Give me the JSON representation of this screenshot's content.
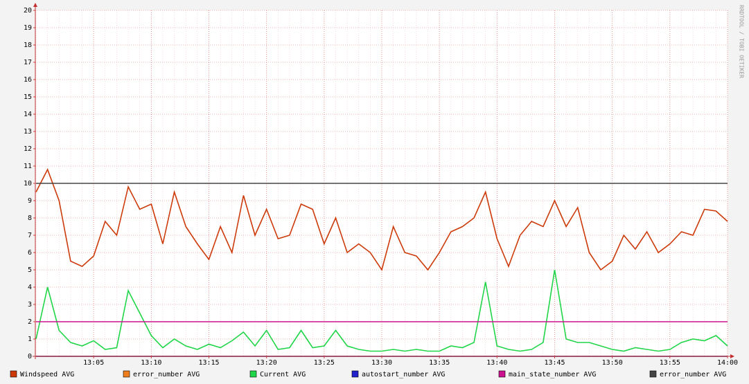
{
  "chart_data": {
    "type": "line",
    "watermark": "RRDTOOL / TOBI OETIKER",
    "x": [
      "13:00",
      "13:01",
      "13:02",
      "13:03",
      "13:04",
      "13:05",
      "13:06",
      "13:07",
      "13:08",
      "13:09",
      "13:10",
      "13:11",
      "13:12",
      "13:13",
      "13:14",
      "13:15",
      "13:16",
      "13:17",
      "13:18",
      "13:19",
      "13:20",
      "13:21",
      "13:22",
      "13:23",
      "13:24",
      "13:25",
      "13:26",
      "13:27",
      "13:28",
      "13:29",
      "13:30",
      "13:31",
      "13:32",
      "13:33",
      "13:34",
      "13:35",
      "13:36",
      "13:37",
      "13:38",
      "13:39",
      "13:40",
      "13:41",
      "13:42",
      "13:43",
      "13:44",
      "13:45",
      "13:46",
      "13:47",
      "13:48",
      "13:49",
      "13:50",
      "13:51",
      "13:52",
      "13:53",
      "13:54",
      "13:55",
      "13:56",
      "13:57",
      "13:58",
      "13:59",
      "14:00"
    ],
    "xticks": [
      "13:05",
      "13:10",
      "13:15",
      "13:20",
      "13:25",
      "13:30",
      "13:35",
      "13:40",
      "13:45",
      "13:50",
      "13:55",
      "14:00"
    ],
    "ylim": [
      0,
      20
    ],
    "yticks": [
      0,
      1,
      2,
      3,
      4,
      5,
      6,
      7,
      8,
      9,
      10,
      11,
      12,
      13,
      14,
      15,
      16,
      17,
      18,
      19,
      20
    ],
    "grid": true,
    "legend": "bottom",
    "series": [
      {
        "name": "error_number AVG",
        "color": "#ee7d1e",
        "values": [
          0,
          0,
          0,
          0,
          0,
          0,
          0,
          0,
          0,
          0,
          0,
          0,
          0,
          0,
          0,
          0,
          0,
          0,
          0,
          0,
          0,
          0,
          0,
          0,
          0,
          0,
          0,
          0,
          0,
          0,
          0,
          0,
          0,
          0,
          0,
          0,
          0,
          0,
          0,
          0,
          0,
          0,
          0,
          0,
          0,
          0,
          0,
          0,
          0,
          0,
          0,
          0,
          0,
          0,
          0,
          0,
          0,
          0,
          0,
          0,
          0
        ]
      },
      {
        "name": "autostart_number AVG",
        "color": "#2222cc",
        "values": [
          0,
          0,
          0,
          0,
          0,
          0,
          0,
          0,
          0,
          0,
          0,
          0,
          0,
          0,
          0,
          0,
          0,
          0,
          0,
          0,
          0,
          0,
          0,
          0,
          0,
          0,
          0,
          0,
          0,
          0,
          0,
          0,
          0,
          0,
          0,
          0,
          0,
          0,
          0,
          0,
          0,
          0,
          0,
          0,
          0,
          0,
          0,
          0,
          0,
          0,
          0,
          0,
          0,
          0,
          0,
          0,
          0,
          0,
          0,
          0,
          0
        ]
      },
      {
        "name": "Windspeed AVG",
        "color": "#cc3a0a",
        "values": [
          9.5,
          10.8,
          9.0,
          5.5,
          5.2,
          5.8,
          7.8,
          7.0,
          9.8,
          8.5,
          8.8,
          6.5,
          9.5,
          7.5,
          6.5,
          5.6,
          7.5,
          6.0,
          9.3,
          7.0,
          8.5,
          6.8,
          7.0,
          8.8,
          8.5,
          6.5,
          8.0,
          6.0,
          6.5,
          6.0,
          5.0,
          7.5,
          6.0,
          5.8,
          5.0,
          6.0,
          7.2,
          7.5,
          8.0,
          9.5,
          6.8,
          5.2,
          7.0,
          7.8,
          7.5,
          9.0,
          7.5,
          8.6,
          6.0,
          5.0,
          5.5,
          7.0,
          6.2,
          7.2,
          6.0,
          6.5,
          7.2,
          7.0,
          8.5,
          8.4,
          7.8
        ]
      },
      {
        "name": "Current AVG",
        "color": "#1fd548",
        "values": [
          1.0,
          4.0,
          1.5,
          0.8,
          0.6,
          0.9,
          0.4,
          0.5,
          3.8,
          2.5,
          1.2,
          0.5,
          1.0,
          0.6,
          0.4,
          0.7,
          0.5,
          0.9,
          1.4,
          0.6,
          1.5,
          0.4,
          0.5,
          1.5,
          0.5,
          0.6,
          1.5,
          0.6,
          0.4,
          0.3,
          0.3,
          0.4,
          0.3,
          0.4,
          0.3,
          0.3,
          0.6,
          0.5,
          0.8,
          4.3,
          0.6,
          0.4,
          0.3,
          0.4,
          0.8,
          5.0,
          1.0,
          0.8,
          0.8,
          0.6,
          0.4,
          0.3,
          0.5,
          0.4,
          0.3,
          0.4,
          0.8,
          1.0,
          0.9,
          1.2,
          0.6
        ]
      },
      {
        "name": "main_state_number AVG",
        "color": "#cc1190",
        "values": [
          2,
          2,
          2,
          2,
          2,
          2,
          2,
          2,
          2,
          2,
          2,
          2,
          2,
          2,
          2,
          2,
          2,
          2,
          2,
          2,
          2,
          2,
          2,
          2,
          2,
          2,
          2,
          2,
          2,
          2,
          2,
          2,
          2,
          2,
          2,
          2,
          2,
          2,
          2,
          2,
          2,
          2,
          2,
          2,
          2,
          2,
          2,
          2,
          2,
          2,
          2,
          2,
          2,
          2,
          2,
          2,
          2,
          2,
          2,
          2,
          2
        ]
      },
      {
        "name": "error_number AVG",
        "color": "#444444",
        "values": [
          10,
          10,
          10,
          10,
          10,
          10,
          10,
          10,
          10,
          10,
          10,
          10,
          10,
          10,
          10,
          10,
          10,
          10,
          10,
          10,
          10,
          10,
          10,
          10,
          10,
          10,
          10,
          10,
          10,
          10,
          10,
          10,
          10,
          10,
          10,
          10,
          10,
          10,
          10,
          10,
          10,
          10,
          10,
          10,
          10,
          10,
          10,
          10,
          10,
          10,
          10,
          10,
          10,
          10,
          10,
          10,
          10,
          10,
          10,
          10,
          10
        ]
      }
    ]
  }
}
